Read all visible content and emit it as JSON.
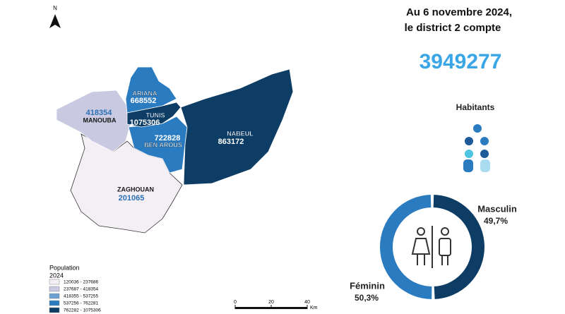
{
  "north_arrow": "N",
  "header": {
    "line1": "Au 6 novembre 2024,",
    "line2": "le district 2 compte"
  },
  "total_population": 3949277,
  "inhabitants_label": "Habitants",
  "regions": [
    {
      "name": "MANOUBA",
      "population": 418354,
      "color": "#c9c9e2"
    },
    {
      "name": "ARIANA",
      "population": 668552,
      "color": "#2b7bc0"
    },
    {
      "name": "TUNIS",
      "population": 1075306,
      "color": "#0d3c64"
    },
    {
      "name": "BEN AROUS",
      "population": 722828,
      "color": "#2b7bc0"
    },
    {
      "name": "NABEUL",
      "population": 863172,
      "color": "#0d3c64"
    },
    {
      "name": "ZAGHOUAN",
      "population": 201065,
      "color": "#f4eef5"
    }
  ],
  "legend": {
    "title": "Population",
    "subtitle": "2024",
    "items": [
      {
        "label": "120036 - 237686",
        "color": "#f4eef5"
      },
      {
        "label": "237687 - 418354",
        "color": "#c9c9e2"
      },
      {
        "label": "418355 - 537255",
        "color": "#6fa0d4"
      },
      {
        "label": "537256 - 762281",
        "color": "#2b7bc0"
      },
      {
        "label": "762282 - 1075306",
        "color": "#0d3c64"
      }
    ]
  },
  "scale_bar": {
    "ticks": [
      0,
      20,
      40
    ],
    "unit": "Km"
  },
  "gender_chart": {
    "type": "pie",
    "categories": [
      "Masculin",
      "Féminin"
    ],
    "values": [
      49.7,
      50.3
    ],
    "value_labels": [
      "49,7%",
      "50,3%"
    ],
    "colors": [
      "#0d3c64",
      "#2b7bc0"
    ]
  }
}
